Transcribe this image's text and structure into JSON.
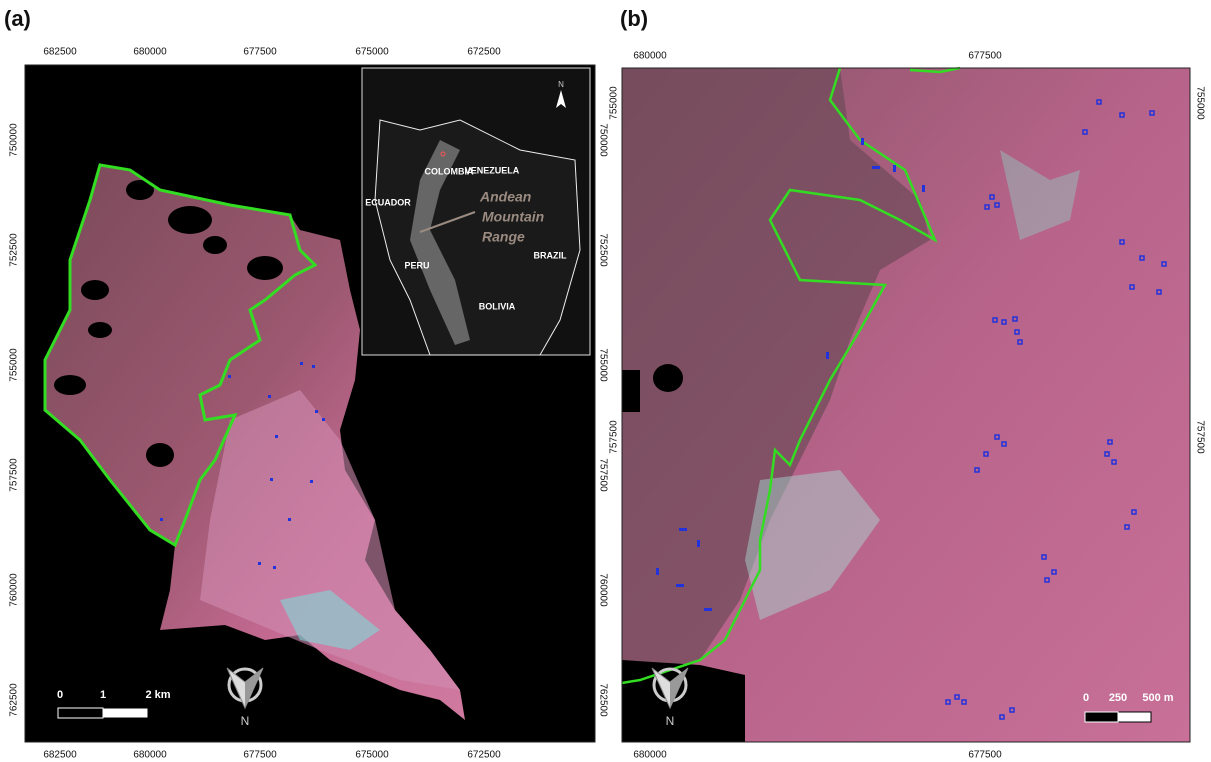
{
  "panels": [
    {
      "label": "(a)",
      "top_ticks": [
        682500,
        680000,
        677500,
        675000,
        672500
      ],
      "bottom_ticks": [
        682500,
        680000,
        677500,
        675000,
        672500
      ],
      "left_ticks": [
        750000,
        752500,
        755000,
        757500,
        760000,
        762500
      ],
      "right_ticks": [
        750000,
        752500,
        755000,
        757500,
        760000,
        762500
      ],
      "scale_labels": [
        "0",
        "1",
        "2 km"
      ],
      "north": "N",
      "inset": {
        "countries": [
          "VENEZUELA",
          "COLOMBIA",
          "ECUADOR",
          "PERU",
          "BRAZIL",
          "BOLIVIA"
        ],
        "annotation": [
          "Andean",
          "Mountain",
          "Range"
        ],
        "north": "N"
      }
    },
    {
      "label": "(b)",
      "top_ticks": [
        680000,
        677500
      ],
      "bottom_ticks": [
        680000,
        677500
      ],
      "left_ticks": [
        755000,
        757500
      ],
      "right_ticks": [
        755000,
        757500
      ],
      "scale_labels": [
        "0",
        "250",
        "500 m"
      ],
      "north": "N"
    }
  ]
}
